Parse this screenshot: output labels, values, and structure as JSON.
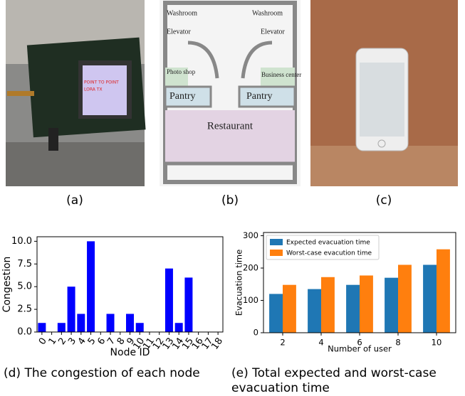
{
  "panels": [
    {
      "label": "(a)",
      "screen_text": [
        "POINT TO POINT",
        "LORA TX"
      ]
    },
    {
      "label": "(b)",
      "rooms": [
        "Washroom",
        "Washroom",
        "Elevator",
        "Elevator",
        "Photo shop",
        "Business center",
        "Pantry",
        "Pantry",
        "Restaurant"
      ]
    },
    {
      "label": "(c)"
    }
  ],
  "chart_data": [
    {
      "type": "bar",
      "caption": "(d) The congestion of each node",
      "xlabel": "Node ID",
      "ylabel": "Congestion",
      "categories": [
        "0",
        "1",
        "2",
        "3",
        "4",
        "5",
        "6",
        "7",
        "8",
        "9",
        "10",
        "11",
        "12",
        "13",
        "14",
        "15",
        "16",
        "17",
        "18"
      ],
      "values": [
        1,
        0,
        1,
        5,
        2,
        10,
        0,
        2,
        0,
        2,
        1,
        0,
        0,
        7,
        1,
        6,
        0,
        0,
        0
      ],
      "color": "#0000ff",
      "ylim": [
        0,
        10.5
      ],
      "yticks": [
        {
          "value": 0,
          "label": "0.0"
        },
        {
          "value": 2.5,
          "label": "2.5"
        },
        {
          "value": 5,
          "label": "5.0"
        },
        {
          "value": 7.5,
          "label": "7.5"
        },
        {
          "value": 10,
          "label": "10.0"
        }
      ]
    },
    {
      "type": "bar",
      "caption": "(e) Total expected and worst-case evacuation time",
      "xlabel": "Number of user",
      "ylabel": "Evacuation time",
      "categories": [
        "2",
        "4",
        "6",
        "8",
        "10"
      ],
      "series": [
        {
          "name": "Expected evacuation time",
          "color": "#1f77b4",
          "values": [
            120,
            135,
            148,
            170,
            210
          ]
        },
        {
          "name": "Worst-case evacution time",
          "color": "#ff7f0e",
          "values": [
            148,
            172,
            177,
            210,
            258
          ]
        }
      ],
      "ylim": [
        0,
        310
      ],
      "yticks": [
        0,
        100,
        200,
        300
      ],
      "legend": "upper left"
    }
  ]
}
